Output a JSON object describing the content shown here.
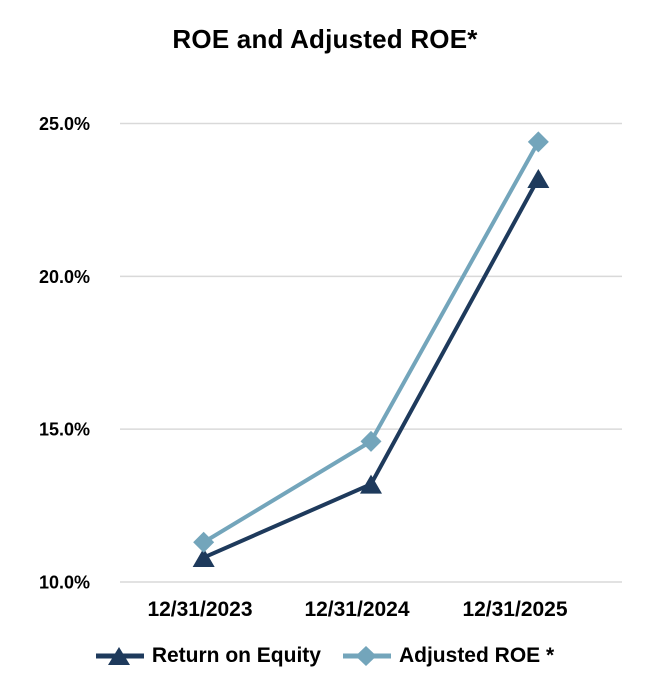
{
  "chart_data": {
    "type": "line",
    "title": "ROE and Adjusted ROE*",
    "categories": [
      "12/31/2023",
      "12/31/2024",
      "12/31/2025"
    ],
    "series": [
      {
        "name": "Return on Equity",
        "values": [
          10.8,
          13.2,
          23.2
        ],
        "color": "#1e3a5c",
        "marker": "triangle"
      },
      {
        "name": "Adjusted ROE *",
        "values": [
          11.3,
          14.6,
          24.4
        ],
        "color": "#73a5bb",
        "marker": "diamond"
      }
    ],
    "xlabel": "",
    "ylabel": "",
    "ylim": [
      10,
      25
    ],
    "y_ticks": [
      10,
      15,
      20,
      25
    ],
    "y_tick_labels": [
      "10.0%",
      "15.0%",
      "20.0%",
      "25.0%"
    ],
    "grid": "horizontal",
    "legend_position": "bottom",
    "gridline_color": "#d9d9d9",
    "text_color": "#000000",
    "background_color": "#ffffff"
  }
}
